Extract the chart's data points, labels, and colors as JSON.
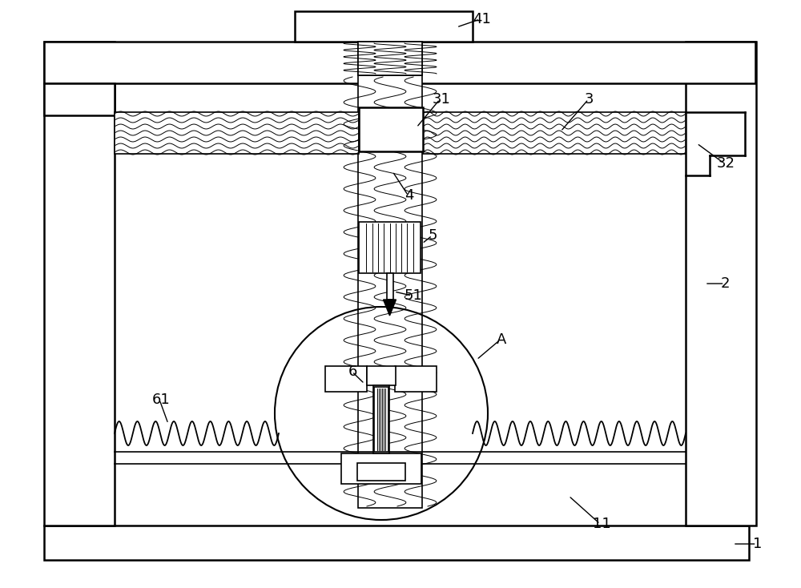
{
  "bg_color": "#ffffff",
  "line_color": "#000000",
  "fig_width": 10.0,
  "fig_height": 7.34,
  "lw_main": 1.8,
  "lw_thin": 1.2,
  "lw_fill": 0.7
}
